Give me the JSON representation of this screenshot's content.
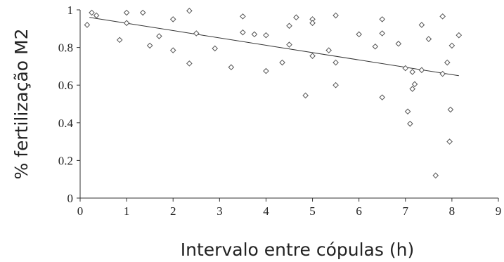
{
  "chart_data": {
    "type": "scatter",
    "xlabel": "Intervalo entre cópulas (h)",
    "ylabel": "% fertilização M2",
    "xlim": [
      0,
      9
    ],
    "ylim": [
      0,
      1
    ],
    "x_ticks": [
      "0",
      "1",
      "2",
      "3",
      "4",
      "5",
      "6",
      "7",
      "8",
      "9"
    ],
    "y_ticks": [
      "0",
      "0.2",
      "0.4",
      "0.6",
      "0.8",
      "1"
    ],
    "grid": false,
    "marker": "diamond-open",
    "trendline": {
      "x": [
        0.2,
        8.15
      ],
      "y": [
        0.96,
        0.65
      ]
    },
    "points": [
      {
        "x": 0.15,
        "y": 0.92
      },
      {
        "x": 0.25,
        "y": 0.985
      },
      {
        "x": 0.35,
        "y": 0.97
      },
      {
        "x": 0.85,
        "y": 0.84
      },
      {
        "x": 1.0,
        "y": 0.985
      },
      {
        "x": 1.0,
        "y": 0.93
      },
      {
        "x": 1.35,
        "y": 0.985
      },
      {
        "x": 1.5,
        "y": 0.81
      },
      {
        "x": 1.7,
        "y": 0.86
      },
      {
        "x": 2.0,
        "y": 0.95
      },
      {
        "x": 2.0,
        "y": 0.785
      },
      {
        "x": 2.35,
        "y": 0.995
      },
      {
        "x": 2.35,
        "y": 0.715
      },
      {
        "x": 2.5,
        "y": 0.875
      },
      {
        "x": 2.9,
        "y": 0.795
      },
      {
        "x": 3.25,
        "y": 0.695
      },
      {
        "x": 3.5,
        "y": 0.965
      },
      {
        "x": 3.5,
        "y": 0.88
      },
      {
        "x": 3.75,
        "y": 0.87
      },
      {
        "x": 4.0,
        "y": 0.865
      },
      {
        "x": 4.0,
        "y": 0.675
      },
      {
        "x": 4.35,
        "y": 0.72
      },
      {
        "x": 4.5,
        "y": 0.915
      },
      {
        "x": 4.5,
        "y": 0.815
      },
      {
        "x": 4.65,
        "y": 0.96
      },
      {
        "x": 4.85,
        "y": 0.545
      },
      {
        "x": 5.0,
        "y": 0.95
      },
      {
        "x": 5.0,
        "y": 0.93
      },
      {
        "x": 5.0,
        "y": 0.755
      },
      {
        "x": 5.35,
        "y": 0.785
      },
      {
        "x": 5.5,
        "y": 0.97
      },
      {
        "x": 5.5,
        "y": 0.72
      },
      {
        "x": 5.5,
        "y": 0.6
      },
      {
        "x": 6.0,
        "y": 0.87
      },
      {
        "x": 6.35,
        "y": 0.805
      },
      {
        "x": 6.5,
        "y": 0.95
      },
      {
        "x": 6.5,
        "y": 0.875
      },
      {
        "x": 6.5,
        "y": 0.535
      },
      {
        "x": 6.85,
        "y": 0.82
      },
      {
        "x": 7.0,
        "y": 0.69
      },
      {
        "x": 7.05,
        "y": 0.46
      },
      {
        "x": 7.1,
        "y": 0.395
      },
      {
        "x": 7.15,
        "y": 0.67
      },
      {
        "x": 7.15,
        "y": 0.58
      },
      {
        "x": 7.2,
        "y": 0.605
      },
      {
        "x": 7.35,
        "y": 0.92
      },
      {
        "x": 7.35,
        "y": 0.68
      },
      {
        "x": 7.5,
        "y": 0.845
      },
      {
        "x": 7.65,
        "y": 0.12
      },
      {
        "x": 7.8,
        "y": 0.965
      },
      {
        "x": 7.8,
        "y": 0.66
      },
      {
        "x": 7.9,
        "y": 0.72
      },
      {
        "x": 7.95,
        "y": 0.3
      },
      {
        "x": 7.97,
        "y": 0.47
      },
      {
        "x": 8.0,
        "y": 0.81
      },
      {
        "x": 8.15,
        "y": 0.865
      }
    ]
  }
}
